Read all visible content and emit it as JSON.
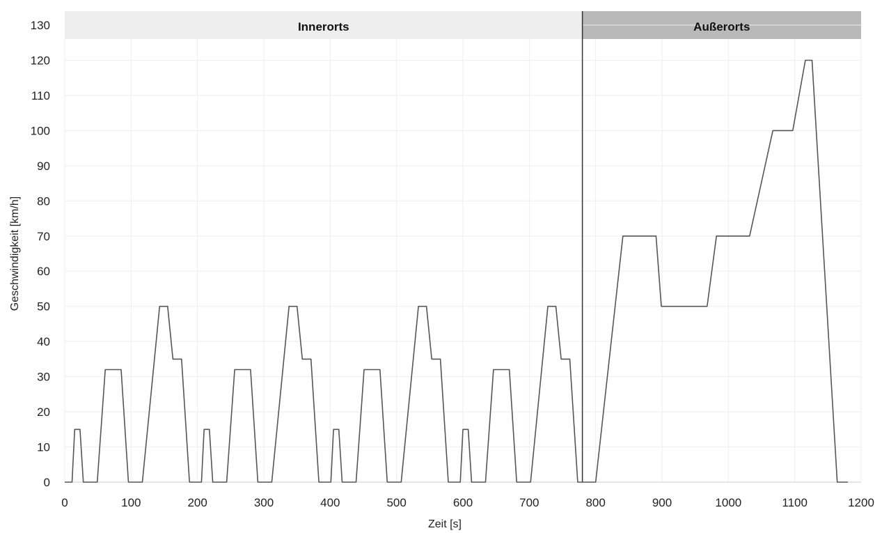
{
  "chart_data": {
    "type": "line",
    "title": "",
    "xlabel": "Zeit [s]",
    "ylabel": "Geschwindigkeit [km/h]",
    "xlim": [
      0,
      1200
    ],
    "ylim": [
      0,
      130
    ],
    "x_ticks": [
      0,
      100,
      200,
      300,
      400,
      500,
      600,
      700,
      800,
      900,
      1000,
      1100,
      1200
    ],
    "y_ticks": [
      0,
      10,
      20,
      30,
      40,
      50,
      60,
      70,
      80,
      90,
      100,
      110,
      120,
      130
    ],
    "grid": true,
    "colors": {
      "line": "#555555",
      "grid": "#eeeeee",
      "innerorts_band": "#eeeeee",
      "ausserorts_band": "#b9b9b9",
      "divider": "#333333"
    },
    "regions": [
      {
        "label": "Innerorts",
        "x_start": 0,
        "x_end": 780
      },
      {
        "label": "Außerorts",
        "x_start": 780,
        "x_end": 1200
      }
    ],
    "divider_x": 780,
    "series": [
      {
        "name": "",
        "points": [
          [
            0,
            0
          ],
          [
            11,
            0
          ],
          [
            15,
            15
          ],
          [
            23,
            15
          ],
          [
            28,
            0
          ],
          [
            49,
            0
          ],
          [
            61,
            32
          ],
          [
            85,
            32
          ],
          [
            96,
            0
          ],
          [
            117,
            0
          ],
          [
            143,
            50
          ],
          [
            155,
            50
          ],
          [
            163,
            35
          ],
          [
            176,
            35
          ],
          [
            188,
            0
          ],
          [
            206,
            0
          ],
          [
            210,
            15
          ],
          [
            218,
            15
          ],
          [
            223,
            0
          ],
          [
            244,
            0
          ],
          [
            256,
            32
          ],
          [
            280,
            32
          ],
          [
            291,
            0
          ],
          [
            312,
            0
          ],
          [
            338,
            50
          ],
          [
            350,
            50
          ],
          [
            358,
            35
          ],
          [
            371,
            35
          ],
          [
            383,
            0
          ],
          [
            401,
            0
          ],
          [
            405,
            15
          ],
          [
            413,
            15
          ],
          [
            418,
            0
          ],
          [
            439,
            0
          ],
          [
            451,
            32
          ],
          [
            475,
            32
          ],
          [
            486,
            0
          ],
          [
            507,
            0
          ],
          [
            533,
            50
          ],
          [
            545,
            50
          ],
          [
            553,
            35
          ],
          [
            566,
            35
          ],
          [
            578,
            0
          ],
          [
            596,
            0
          ],
          [
            600,
            15
          ],
          [
            608,
            15
          ],
          [
            613,
            0
          ],
          [
            634,
            0
          ],
          [
            646,
            32
          ],
          [
            670,
            32
          ],
          [
            681,
            0
          ],
          [
            702,
            0
          ],
          [
            728,
            50
          ],
          [
            740,
            50
          ],
          [
            748,
            35
          ],
          [
            761,
            35
          ],
          [
            773,
            0
          ],
          [
            780,
            0
          ],
          [
            800,
            0
          ],
          [
            841,
            70
          ],
          [
            891,
            70
          ],
          [
            899,
            50
          ],
          [
            968,
            50
          ],
          [
            982,
            70
          ],
          [
            1032,
            70
          ],
          [
            1067,
            100
          ],
          [
            1097,
            100
          ],
          [
            1116,
            120
          ],
          [
            1126,
            120
          ],
          [
            1164,
            0
          ],
          [
            1180,
            0
          ]
        ]
      }
    ]
  }
}
